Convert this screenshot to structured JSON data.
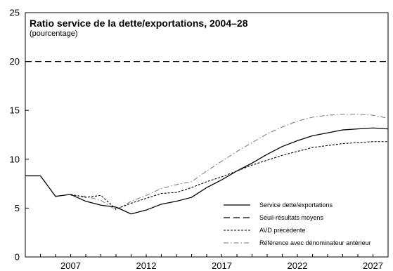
{
  "chart_data": {
    "type": "line",
    "title": "Ratio service de la dette/exportations, 2004–28",
    "subtitle": "(pourcentage)",
    "xlabel": "",
    "ylabel": "",
    "x": [
      2004,
      2005,
      2006,
      2007,
      2008,
      2009,
      2010,
      2011,
      2012,
      2013,
      2014,
      2015,
      2016,
      2017,
      2018,
      2019,
      2020,
      2021,
      2022,
      2023,
      2024,
      2025,
      2026,
      2027,
      2028
    ],
    "xlim": [
      2004,
      2028
    ],
    "ylim": [
      0,
      25
    ],
    "x_ticks": [
      2007,
      2012,
      2017,
      2022,
      2027
    ],
    "y_ticks": [
      0,
      5,
      10,
      15,
      20,
      25
    ],
    "grid": false,
    "legend_position": "bottom-right",
    "series": [
      {
        "name": "Service dette/exportations",
        "style": "solid",
        "color": "#000000",
        "values": [
          8.3,
          8.3,
          6.2,
          6.4,
          5.7,
          5.3,
          5.1,
          4.4,
          4.8,
          5.4,
          5.7,
          6.1,
          7.1,
          7.9,
          8.8,
          9.6,
          10.5,
          11.3,
          11.9,
          12.4,
          12.7,
          13.0,
          13.1,
          13.2,
          13.1
        ]
      },
      {
        "name": "Seuil-résultats moyens",
        "style": "longdash",
        "color": "#000000",
        "values": [
          20,
          20,
          20,
          20,
          20,
          20,
          20,
          20,
          20,
          20,
          20,
          20,
          20,
          20,
          20,
          20,
          20,
          20,
          20,
          20,
          20,
          20,
          20,
          20,
          20
        ]
      },
      {
        "name": "AVD précédente",
        "style": "shortdash",
        "color": "#000000",
        "values": [
          null,
          null,
          null,
          6.4,
          6.1,
          6.3,
          4.9,
          5.5,
          6.0,
          6.5,
          6.6,
          7.1,
          7.7,
          8.2,
          8.8,
          9.4,
          9.9,
          10.4,
          10.8,
          11.2,
          11.4,
          11.6,
          11.7,
          11.8,
          11.8
        ]
      },
      {
        "name": "Référence avec dénominateur antérieur",
        "style": "dashdot",
        "color": "#777777",
        "values": [
          null,
          null,
          null,
          6.3,
          6.2,
          5.8,
          4.8,
          5.7,
          6.3,
          7.0,
          7.4,
          7.7,
          8.8,
          9.8,
          10.8,
          11.7,
          12.6,
          13.3,
          13.9,
          14.3,
          14.5,
          14.6,
          14.6,
          14.5,
          14.2
        ]
      }
    ]
  }
}
